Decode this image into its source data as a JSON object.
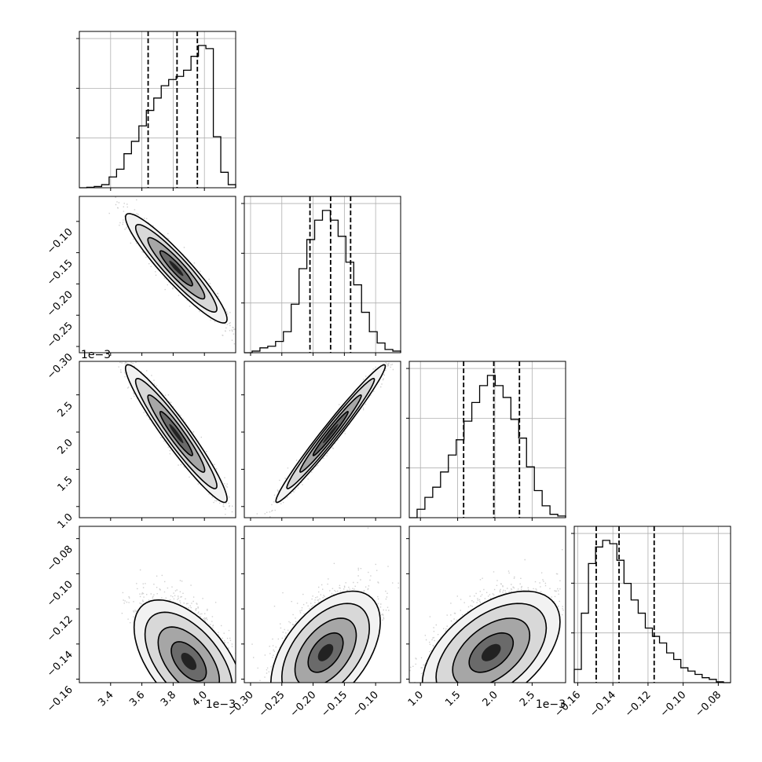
{
  "chart_data": {
    "type": "corner",
    "parameters": [
      {
        "range": [
          3.2,
          4.2
        ],
        "ticks": [
          3.4,
          3.6,
          3.8,
          4.0
        ],
        "scale_label": "1e−3"
      },
      {
        "range": [
          -0.31,
          -0.06
        ],
        "ticks": [
          -0.3,
          -0.25,
          -0.2,
          -0.15,
          -0.1
        ]
      },
      {
        "range": [
          0.85,
          2.95
        ],
        "ticks": [
          1.0,
          1.5,
          2.0,
          2.5
        ],
        "scale_label": "1e−3"
      },
      {
        "range": [
          -0.162,
          -0.073
        ],
        "ticks": [
          -0.16,
          -0.14,
          -0.12,
          -0.1,
          -0.08
        ]
      }
    ],
    "tick_labels": {
      "p0": [
        "3.4",
        "3.6",
        "3.8",
        "4.0"
      ],
      "p1": [
        "−0.30",
        "−0.25",
        "−0.20",
        "−0.15",
        "−0.10"
      ],
      "p1_left": [
        "−0.10",
        "−0.15",
        "−0.20",
        "−0.25",
        "−0.30"
      ],
      "p2": [
        "1.0",
        "1.5",
        "2.0",
        "2.5"
      ],
      "p2_left": [
        "1.0",
        "1.5",
        "2.0",
        "2.5"
      ],
      "p3": [
        "−0.16",
        "−0.14",
        "−0.12",
        "−0.10",
        "−0.08"
      ],
      "p3_left": [
        "−0.16",
        "−0.14",
        "−0.12",
        "−0.10",
        "−0.08"
      ]
    },
    "scale_labels": {
      "p0": "1e−3",
      "p2": "1e−3"
    },
    "quantiles": [
      [
        3.64,
        3.825,
        3.955
      ],
      [
        -0.205,
        -0.172,
        -0.14
      ],
      [
        1.58,
        1.985,
        2.33
      ],
      [
        -0.1495,
        -0.1365,
        -0.1165
      ]
    ],
    "histograms": [
      {
        "param": 0,
        "edges_min": 3.2,
        "edges_max": 4.2,
        "counts": [
          0,
          0.003,
          0.008,
          0.02,
          0.07,
          0.12,
          0.22,
          0.3,
          0.4,
          0.5,
          0.58,
          0.66,
          0.7,
          0.72,
          0.76,
          0.85,
          0.92,
          0.9,
          0.33,
          0.1,
          0.02
        ]
      },
      {
        "param": 1,
        "edges_min": -0.31,
        "edges_max": -0.06,
        "counts": [
          0,
          0.01,
          0.03,
          0.04,
          0.07,
          0.13,
          0.3,
          0.52,
          0.7,
          0.82,
          0.88,
          0.82,
          0.72,
          0.56,
          0.42,
          0.25,
          0.13,
          0.06,
          0.02,
          0.01
        ]
      },
      {
        "param": 2,
        "edges_min": 0.85,
        "edges_max": 2.95,
        "counts": [
          0,
          0.05,
          0.12,
          0.18,
          0.27,
          0.37,
          0.46,
          0.57,
          0.68,
          0.78,
          0.84,
          0.78,
          0.71,
          0.58,
          0.47,
          0.3,
          0.16,
          0.07,
          0.02,
          0.01
        ]
      },
      {
        "param": 3,
        "edges_min": -0.162,
        "edges_max": -0.073,
        "counts": [
          0.08,
          0.42,
          0.72,
          0.82,
          0.86,
          0.84,
          0.74,
          0.6,
          0.5,
          0.42,
          0.33,
          0.28,
          0.24,
          0.18,
          0.14,
          0.09,
          0.07,
          0.05,
          0.03,
          0.02,
          0.005,
          0
        ]
      }
    ],
    "density_2d": [
      {
        "x_param": 0,
        "y_param": 1,
        "center": [
          3.82,
          -0.175
        ],
        "sigma": [
          0.13,
          0.035
        ],
        "rho": -0.93
      },
      {
        "x_param": 0,
        "y_param": 2,
        "center": [
          3.82,
          1.98
        ],
        "sigma": [
          0.13,
          0.37
        ],
        "rho": -0.95
      },
      {
        "x_param": 1,
        "y_param": 2,
        "center": [
          -0.172,
          1.98
        ],
        "sigma": [
          0.035,
          0.37
        ],
        "rho": 0.98
      },
      {
        "x_param": 0,
        "y_param": 3,
        "center": [
          3.9,
          -0.145
        ],
        "sigma": [
          0.14,
          0.014
        ],
        "rho": -0.55
      },
      {
        "x_param": 1,
        "y_param": 3,
        "center": [
          -0.18,
          -0.14
        ],
        "sigma": [
          0.035,
          0.014
        ],
        "rho": 0.5
      },
      {
        "x_param": 2,
        "y_param": 3,
        "center": [
          1.95,
          -0.14
        ],
        "sigma": [
          0.37,
          0.014
        ],
        "rho": 0.5
      }
    ],
    "grid": true,
    "contour_levels": 4
  }
}
